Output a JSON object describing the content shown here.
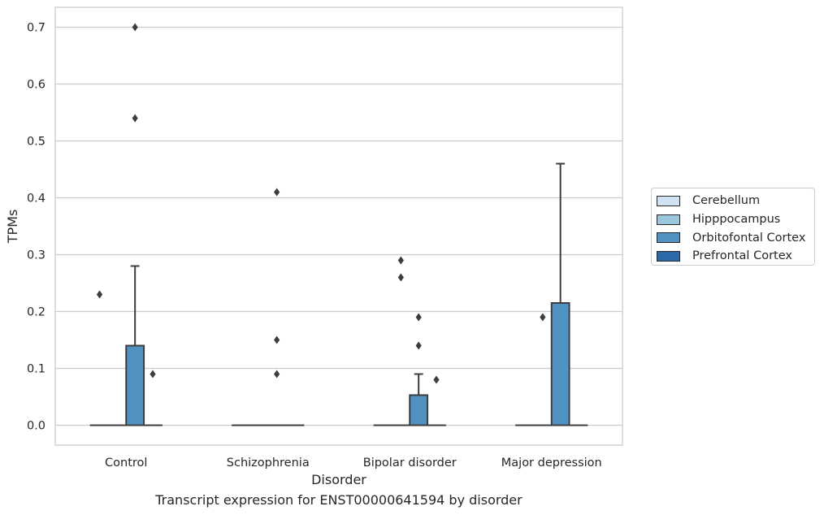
{
  "chart_data": {
    "type": "box",
    "title": "",
    "caption": "Transcript expression for ENST00000641594 by disorder",
    "xlabel": "Disorder",
    "ylabel": "TPMs",
    "categories": [
      "Control",
      "Schizophrenia",
      "Bipolar disorder",
      "Major depression"
    ],
    "ylim": [
      -0.035,
      0.735
    ],
    "yticks": [
      "0.0",
      "0.1",
      "0.2",
      "0.3",
      "0.4",
      "0.5",
      "0.6",
      "0.7"
    ],
    "grid": true,
    "legend_placement": "right",
    "series": [
      {
        "name": "Cerebellum",
        "color": "#d1e2f2",
        "boxes": [
          {
            "q1": 0,
            "median": 0,
            "q3": 0,
            "whisker_low": 0,
            "whisker_high": 0,
            "outliers": [
              0.23
            ]
          },
          {
            "q1": 0,
            "median": 0,
            "q3": 0,
            "whisker_low": 0,
            "whisker_high": 0,
            "outliers": []
          },
          {
            "q1": 0,
            "median": 0,
            "q3": 0,
            "whisker_low": 0,
            "whisker_high": 0,
            "outliers": []
          },
          {
            "q1": 0,
            "median": 0,
            "q3": 0,
            "whisker_low": 0,
            "whisker_high": 0,
            "outliers": []
          }
        ]
      },
      {
        "name": "Hipppocampus",
        "color": "#9ac6de",
        "boxes": [
          {
            "q1": 0,
            "median": 0,
            "q3": 0,
            "whisker_low": 0,
            "whisker_high": 0,
            "outliers": []
          },
          {
            "q1": 0,
            "median": 0,
            "q3": 0,
            "whisker_low": 0,
            "whisker_high": 0,
            "outliers": []
          },
          {
            "q1": 0,
            "median": 0,
            "q3": 0,
            "whisker_low": 0,
            "whisker_high": 0,
            "outliers": [
              0.29,
              0.26
            ]
          },
          {
            "q1": 0,
            "median": 0,
            "q3": 0,
            "whisker_low": 0,
            "whisker_high": 0,
            "outliers": [
              0.19
            ]
          }
        ]
      },
      {
        "name": "Orbitofontal Cortex",
        "color": "#5093c3",
        "boxes": [
          {
            "q1": 0,
            "median": 0,
            "q3": 0.14,
            "whisker_low": 0,
            "whisker_high": 0.28,
            "outliers": [
              0.54,
              0.7
            ]
          },
          {
            "q1": 0,
            "median": 0,
            "q3": 0,
            "whisker_low": 0,
            "whisker_high": 0,
            "outliers": [
              0.09,
              0.15,
              0.41
            ]
          },
          {
            "q1": 0,
            "median": 0,
            "q3": 0.053,
            "whisker_low": 0,
            "whisker_high": 0.09,
            "outliers": [
              0.14,
              0.19
            ]
          },
          {
            "q1": 0,
            "median": 0,
            "q3": 0.215,
            "whisker_low": 0,
            "whisker_high": 0.46,
            "outliers": []
          }
        ]
      },
      {
        "name": "Prefrontal Cortex",
        "color": "#2a6aaa",
        "boxes": [
          {
            "q1": 0,
            "median": 0,
            "q3": 0,
            "whisker_low": 0,
            "whisker_high": 0,
            "outliers": [
              0.09
            ]
          },
          {
            "q1": 0,
            "median": 0,
            "q3": 0,
            "whisker_low": 0,
            "whisker_high": 0,
            "outliers": []
          },
          {
            "q1": 0,
            "median": 0,
            "q3": 0,
            "whisker_low": 0,
            "whisker_high": 0,
            "outliers": [
              0.08
            ]
          },
          {
            "q1": 0,
            "median": 0,
            "q3": 0,
            "whisker_low": 0,
            "whisker_high": 0,
            "outliers": []
          }
        ]
      }
    ]
  },
  "colors": {
    "grid": "#cccccc",
    "frame": "#cccccc",
    "box_edge": "#3d3d3d",
    "text": "#262626"
  }
}
